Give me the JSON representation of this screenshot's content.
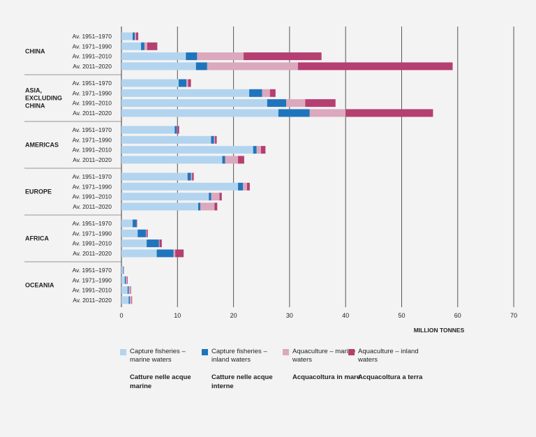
{
  "colors": {
    "capture_marine": "#b3d4ef",
    "capture_inland": "#1f75bd",
    "aqua_marine": "#dba8bd",
    "aqua_inland": "#b43f70",
    "grid": "#555555",
    "separator": "#777777"
  },
  "legend": [
    {
      "en": "Capture fisheries – marine waters",
      "it": "Catture nelle acque marine",
      "color": "#b3d4ef"
    },
    {
      "en": "Capture fisheries – inland waters",
      "it": "Catture nelle acque interne",
      "color": "#1f75bd"
    },
    {
      "en": "Aquaculture – marine waters",
      "it": "Acquacoltura in mare",
      "color": "#dba8bd"
    },
    {
      "en": "Aquaculture – inland waters",
      "it": "Acquacoltura a terra",
      "color": "#b43f70"
    }
  ],
  "chart_data": {
    "type": "bar",
    "orientation": "horizontal",
    "stacked": true,
    "xlabel": "MILLION TONNES",
    "xlim": [
      0,
      70
    ],
    "xticks": [
      0,
      10,
      20,
      30,
      40,
      50,
      60,
      70
    ],
    "series": [
      "Capture fisheries – marine waters",
      "Capture fisheries – inland waters",
      "Aquaculture – marine waters",
      "Aquaculture – inland waters"
    ],
    "groups": [
      {
        "region": "CHINA",
        "rows": [
          {
            "period": "Av. 1951–1970",
            "values": [
              2.0,
              0.4,
              0.2,
              0.4
            ]
          },
          {
            "period": "Av. 1971–1990",
            "values": [
              3.5,
              0.6,
              0.5,
              1.8
            ]
          },
          {
            "period": "Av. 1991–2010",
            "values": [
              11.5,
              2.0,
              8.3,
              13.9
            ]
          },
          {
            "period": "Av. 2011–2020",
            "values": [
              13.3,
              2.0,
              16.2,
              27.6
            ]
          }
        ]
      },
      {
        "region": "ASIA, EXCLUDING CHINA",
        "rows": [
          {
            "period": "Av. 1951–1970",
            "values": [
              10.2,
              1.4,
              0.3,
              0.5
            ]
          },
          {
            "period": "Av. 1971–1990",
            "values": [
              22.8,
              2.3,
              1.4,
              1.0
            ]
          },
          {
            "period": "Av. 1991–2010",
            "values": [
              26.0,
              3.4,
              3.4,
              5.4
            ]
          },
          {
            "period": "Av. 2011–2020",
            "values": [
              28.0,
              5.6,
              6.4,
              15.6
            ]
          }
        ]
      },
      {
        "region": "AMERICAS",
        "rows": [
          {
            "period": "Av. 1951–1970",
            "values": [
              9.5,
              0.4,
              0.1,
              0.3
            ]
          },
          {
            "period": "Av. 1971–1990",
            "values": [
              16.0,
              0.5,
              0.2,
              0.3
            ]
          },
          {
            "period": "Av. 1991–2010",
            "values": [
              23.5,
              0.6,
              0.8,
              0.8
            ]
          },
          {
            "period": "Av. 2011–2020",
            "values": [
              18.0,
              0.5,
              2.3,
              1.1
            ]
          }
        ]
      },
      {
        "region": "EUROPE",
        "rows": [
          {
            "period": "Av. 1951–1970",
            "values": [
              11.8,
              0.6,
              0.2,
              0.3
            ]
          },
          {
            "period": "Av. 1971–1990",
            "values": [
              20.8,
              0.9,
              0.7,
              0.5
            ]
          },
          {
            "period": "Av. 1991–2010",
            "values": [
              15.6,
              0.4,
              1.5,
              0.4
            ]
          },
          {
            "period": "Av. 2011–2020",
            "values": [
              13.7,
              0.4,
              2.5,
              0.5
            ]
          }
        ]
      },
      {
        "region": "AFRICA",
        "rows": [
          {
            "period": "Av. 1951–1970",
            "values": [
              2.0,
              0.7,
              0.0,
              0.1
            ]
          },
          {
            "period": "Av. 1971–1990",
            "values": [
              2.9,
              1.5,
              0.1,
              0.2
            ]
          },
          {
            "period": "Av. 1991–2010",
            "values": [
              4.5,
              2.2,
              0.1,
              0.4
            ]
          },
          {
            "period": "Av. 2011–2020",
            "values": [
              6.3,
              3.0,
              0.3,
              1.5
            ]
          }
        ]
      },
      {
        "region": "OCEANIA",
        "rows": [
          {
            "period": "Av. 1951–1970",
            "values": [
              0.3,
              0.1,
              0.1,
              0.0
            ]
          },
          {
            "period": "Av. 1971–1990",
            "values": [
              0.6,
              0.2,
              0.2,
              0.1
            ]
          },
          {
            "period": "Av. 1991–2010",
            "values": [
              1.1,
              0.2,
              0.3,
              0.1
            ]
          },
          {
            "period": "Av. 2011–2020",
            "values": [
              1.3,
              0.2,
              0.3,
              0.1
            ]
          }
        ]
      }
    ]
  }
}
